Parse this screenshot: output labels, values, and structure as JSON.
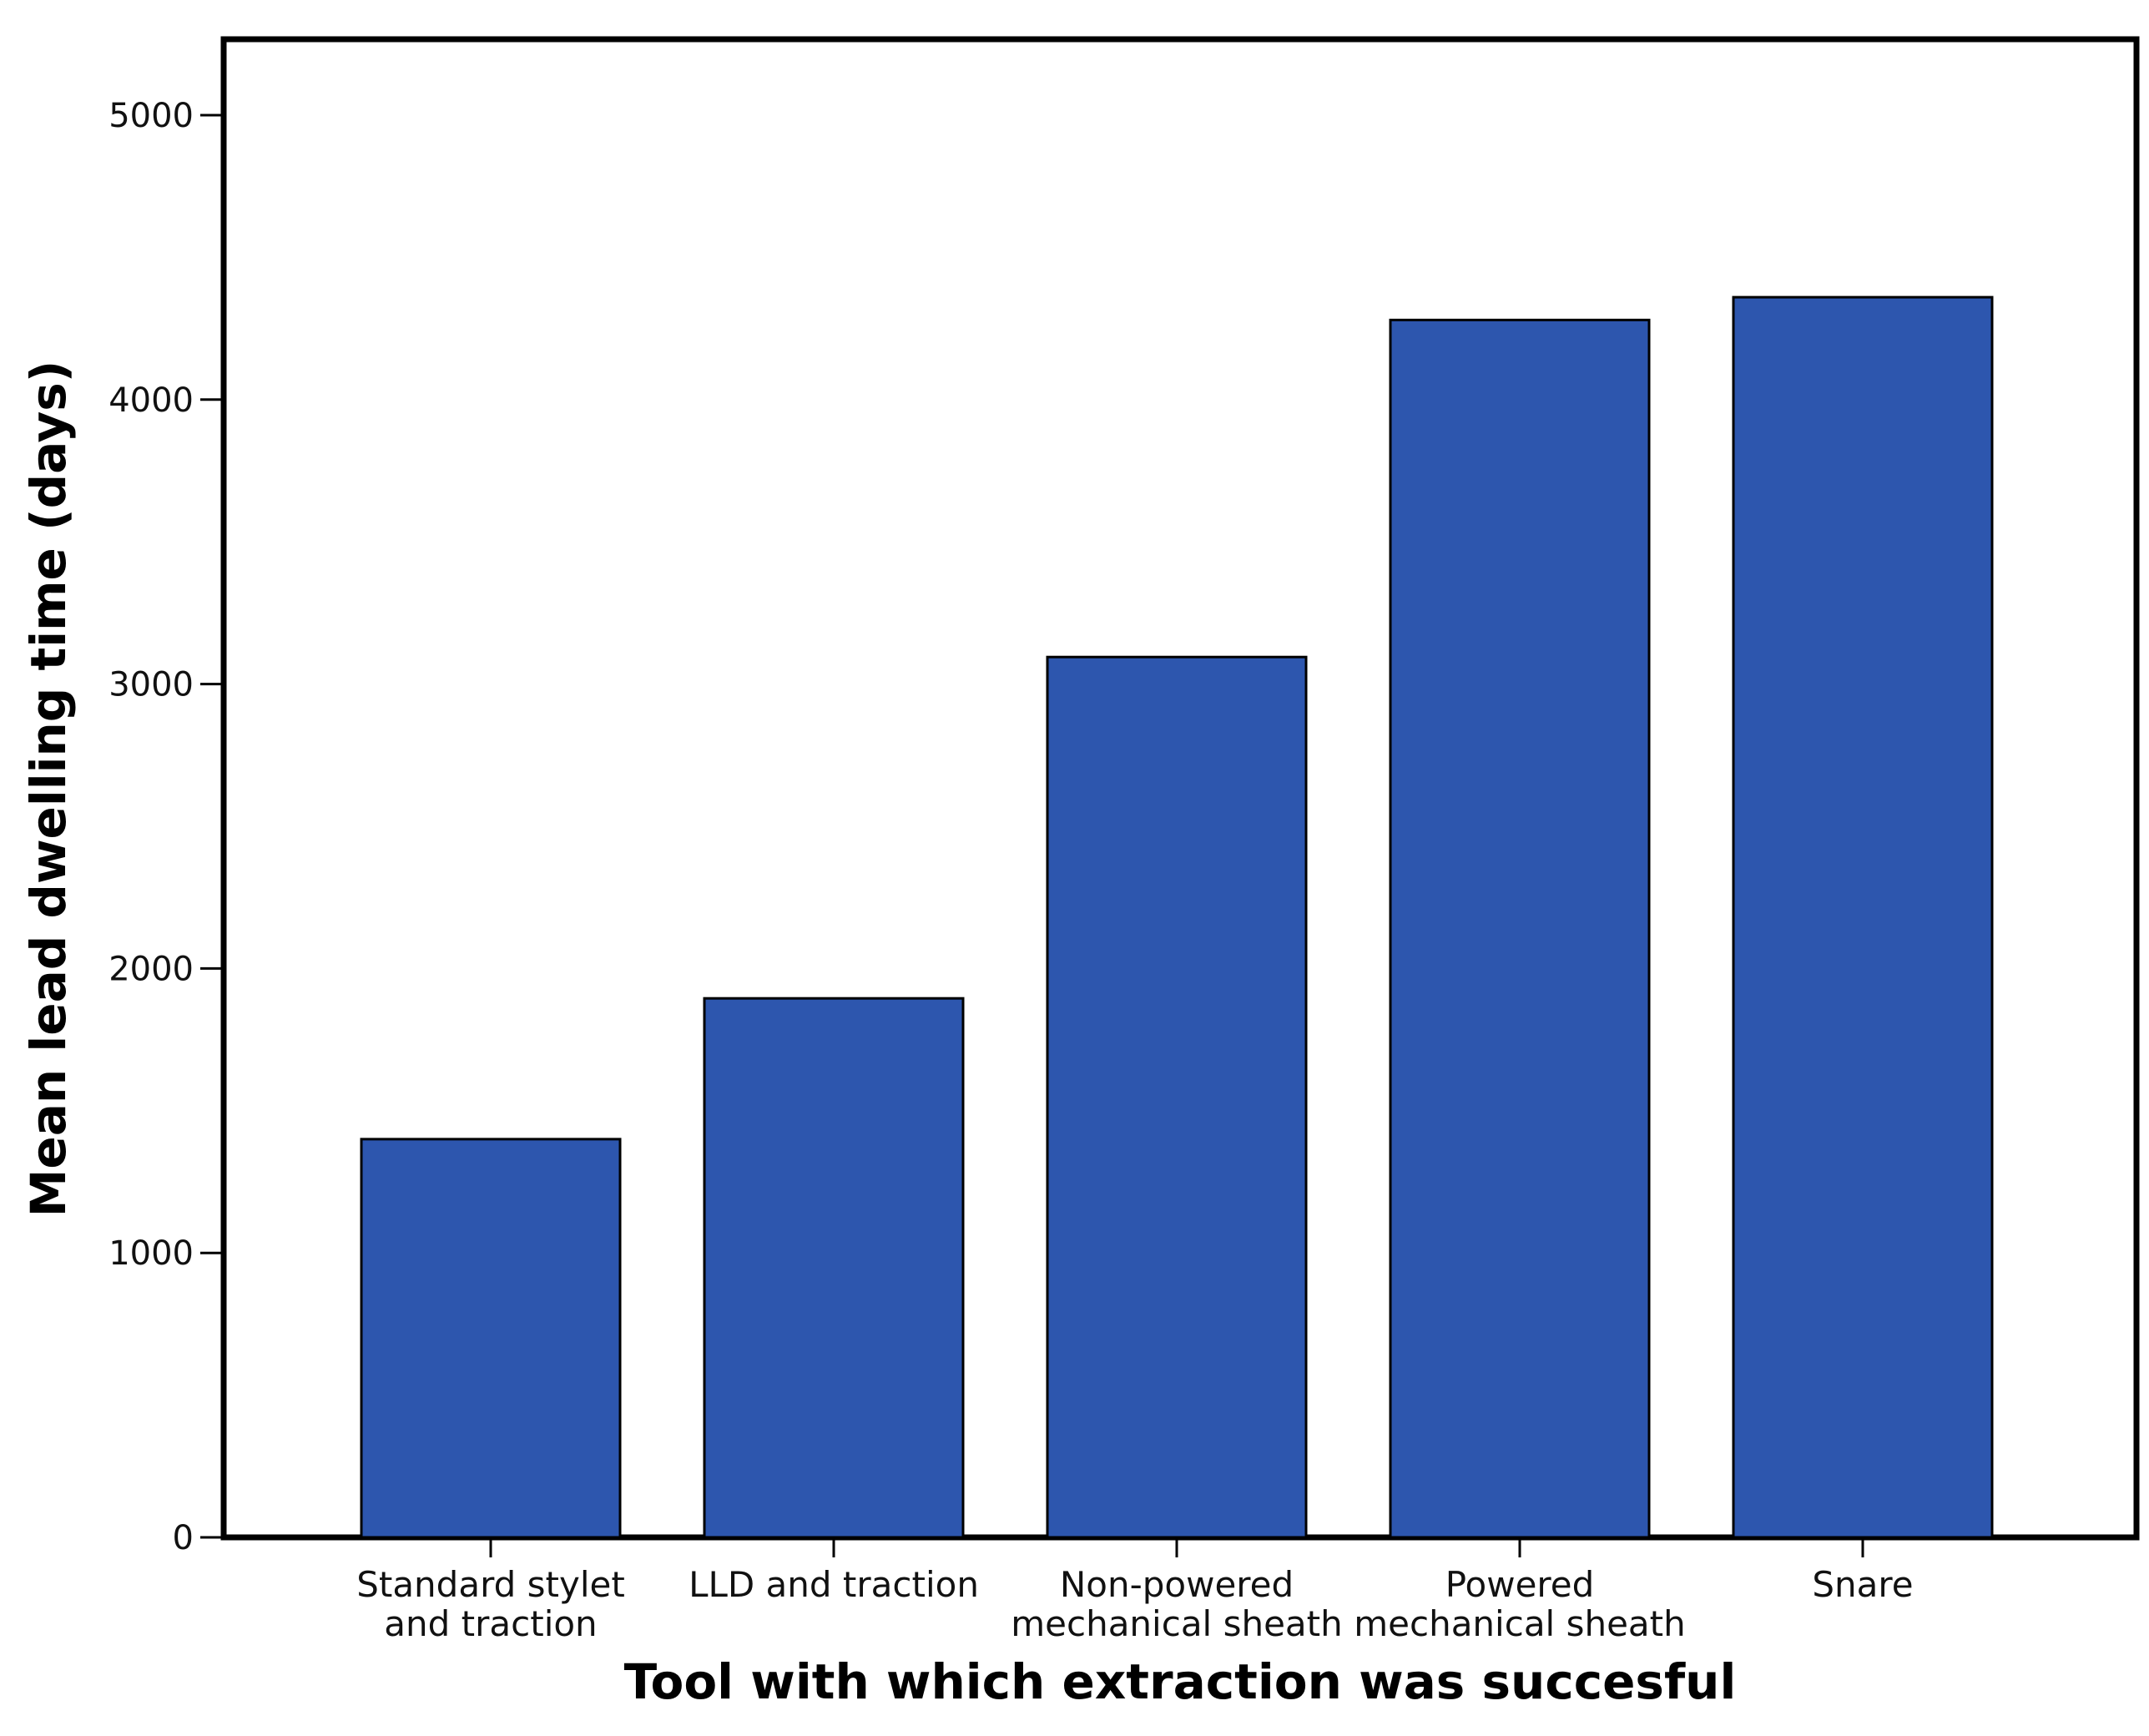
{
  "chart_data": {
    "type": "bar",
    "title": "",
    "xlabel": "Tool with which extraction was succesful",
    "ylabel": "Mean lead dwelling time (days)",
    "ylim": [
      0,
      5250
    ],
    "yticks": [
      0,
      1000,
      2000,
      3000,
      4000,
      5000
    ],
    "ytick_labels": [
      "0",
      "1000",
      "2000",
      "3000",
      "4000",
      "5000"
    ],
    "categories": [
      [
        "Standard stylet",
        "and traction"
      ],
      [
        "LLD and traction"
      ],
      [
        "Non-powered",
        "mechanical sheath"
      ],
      [
        "Powered",
        "mechanical sheath"
      ],
      [
        "Snare"
      ]
    ],
    "values": [
      1400,
      1895,
      3095,
      4280,
      4360
    ],
    "grid": false,
    "legend": "none",
    "colors": {
      "bar_fill": "#2d56ae",
      "bar_stroke": "#000000",
      "frame": "#000000"
    }
  }
}
